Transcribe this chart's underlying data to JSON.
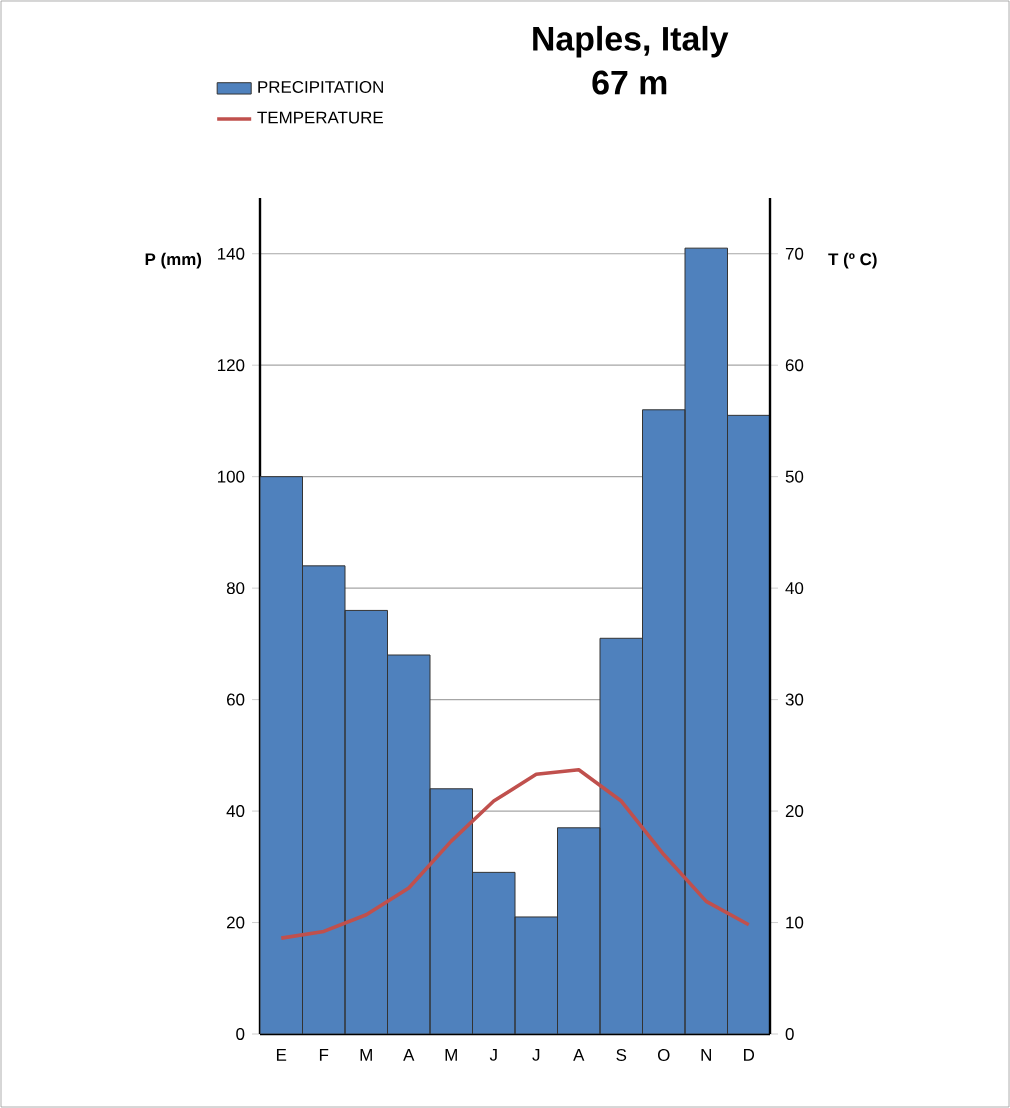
{
  "chart_data": {
    "type": "bar",
    "title": "Naples, Italy",
    "subtitle": "67 m",
    "ylabel": "P (mm)",
    "y2label": "T (º C)",
    "categories": [
      "E",
      "F",
      "M",
      "A",
      "M",
      "J",
      "J",
      "A",
      "S",
      "O",
      "N",
      "D"
    ],
    "series": [
      {
        "name": "PRECIPITATION",
        "type": "bar",
        "color": "#4f81bd",
        "values": [
          100,
          84,
          76,
          68,
          44,
          29,
          21,
          37,
          71,
          112,
          141,
          111
        ]
      },
      {
        "name": "TEMPERATURE",
        "type": "line",
        "axis": "y2",
        "color": "#c0504d",
        "values": [
          8.6,
          9.2,
          10.7,
          13.1,
          17.3,
          20.9,
          23.3,
          23.7,
          20.9,
          16.1,
          11.9,
          9.8
        ]
      }
    ],
    "ylim": [
      0,
      150
    ],
    "yticks": [
      0,
      20,
      40,
      60,
      80,
      100,
      120,
      140
    ],
    "y2lim": [
      0,
      75
    ],
    "y2ticks": [
      0,
      10,
      20,
      30,
      40,
      50,
      60,
      70
    ],
    "grid": "y",
    "legend": "top left",
    "marker": "none"
  }
}
